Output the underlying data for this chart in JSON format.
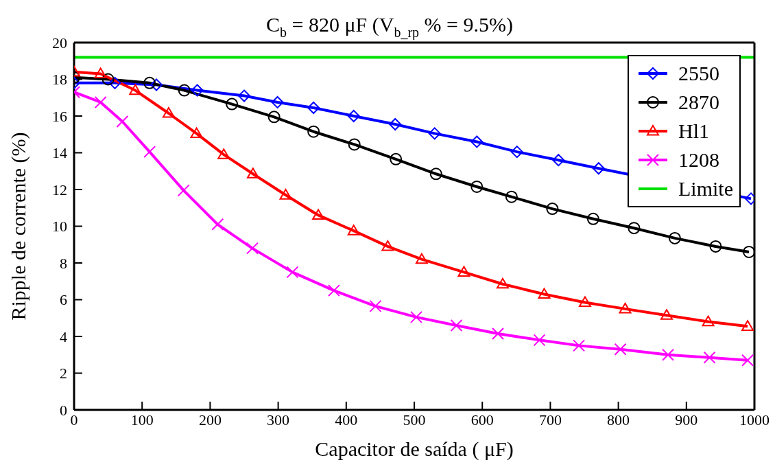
{
  "chart_data": {
    "type": "line",
    "title": "C$_{b}$ = 820 μF (V$_{b_rp}$% = 9.5%)",
    "xlabel": "Capacitor de saída ( μF)",
    "ylabel": "Ripple de corrente (%)",
    "xlim": [
      0,
      1000
    ],
    "xticks": [
      0,
      100,
      200,
      300,
      400,
      500,
      600,
      700,
      800,
      900,
      1000
    ],
    "ylim": [
      0,
      20
    ],
    "yticks": [
      0,
      2,
      4,
      6,
      8,
      10,
      12,
      14,
      16,
      18,
      20
    ],
    "grid": false,
    "legend": "top right",
    "line_style": "solid",
    "series": [
      {
        "name": "2550",
        "color": "#0000ff",
        "marker": "diamond",
        "x": [
          0,
          60,
          121,
          181,
          250,
          299,
          352,
          411,
          472,
          530,
          592,
          651,
          712,
          771,
          995
        ],
        "values": [
          17.8,
          17.8,
          17.7,
          17.4,
          17.1,
          16.75,
          16.45,
          16.0,
          15.55,
          15.05,
          14.6,
          14.05,
          13.6,
          13.15,
          11.5
        ]
      },
      {
        "name": "2870",
        "color": "#000000",
        "marker": "circle",
        "x": [
          0,
          50,
          111,
          162,
          232,
          294,
          352,
          412,
          473,
          532,
          592,
          643,
          703,
          763,
          823,
          883,
          943,
          992
        ],
        "values": [
          18.1,
          18.0,
          17.8,
          17.4,
          16.65,
          15.95,
          15.15,
          14.45,
          13.65,
          12.85,
          12.15,
          11.6,
          10.95,
          10.4,
          9.9,
          9.35,
          8.9,
          8.6
        ]
      },
      {
        "name": "Hl1",
        "color": "#ff0000",
        "marker": "triangle",
        "x": [
          0,
          39,
          90,
          139,
          180,
          220,
          263,
          311,
          359,
          411,
          461,
          511,
          573,
          630,
          691,
          751,
          810,
          871,
          932,
          990
        ],
        "values": [
          18.4,
          18.3,
          17.4,
          16.15,
          15.05,
          13.9,
          12.85,
          11.7,
          10.6,
          9.75,
          8.9,
          8.2,
          7.5,
          6.85,
          6.3,
          5.85,
          5.5,
          5.15,
          4.8,
          4.55
        ]
      },
      {
        "name": "1208",
        "color": "#ff00ff",
        "marker": "cross",
        "x": [
          0,
          39,
          71,
          111,
          161,
          211,
          262,
          321,
          382,
          443,
          503,
          562,
          623,
          684,
          742,
          803,
          873,
          934,
          990
        ],
        "values": [
          17.3,
          16.75,
          15.7,
          14.05,
          11.95,
          10.1,
          8.8,
          7.5,
          6.5,
          5.65,
          5.05,
          4.6,
          4.15,
          3.8,
          3.5,
          3.3,
          3.0,
          2.85,
          2.7
        ]
      },
      {
        "name": "Limite",
        "color": "#00e000",
        "marker": "none",
        "x": [
          0,
          1000
        ],
        "values": [
          19.2,
          19.2
        ]
      }
    ]
  }
}
